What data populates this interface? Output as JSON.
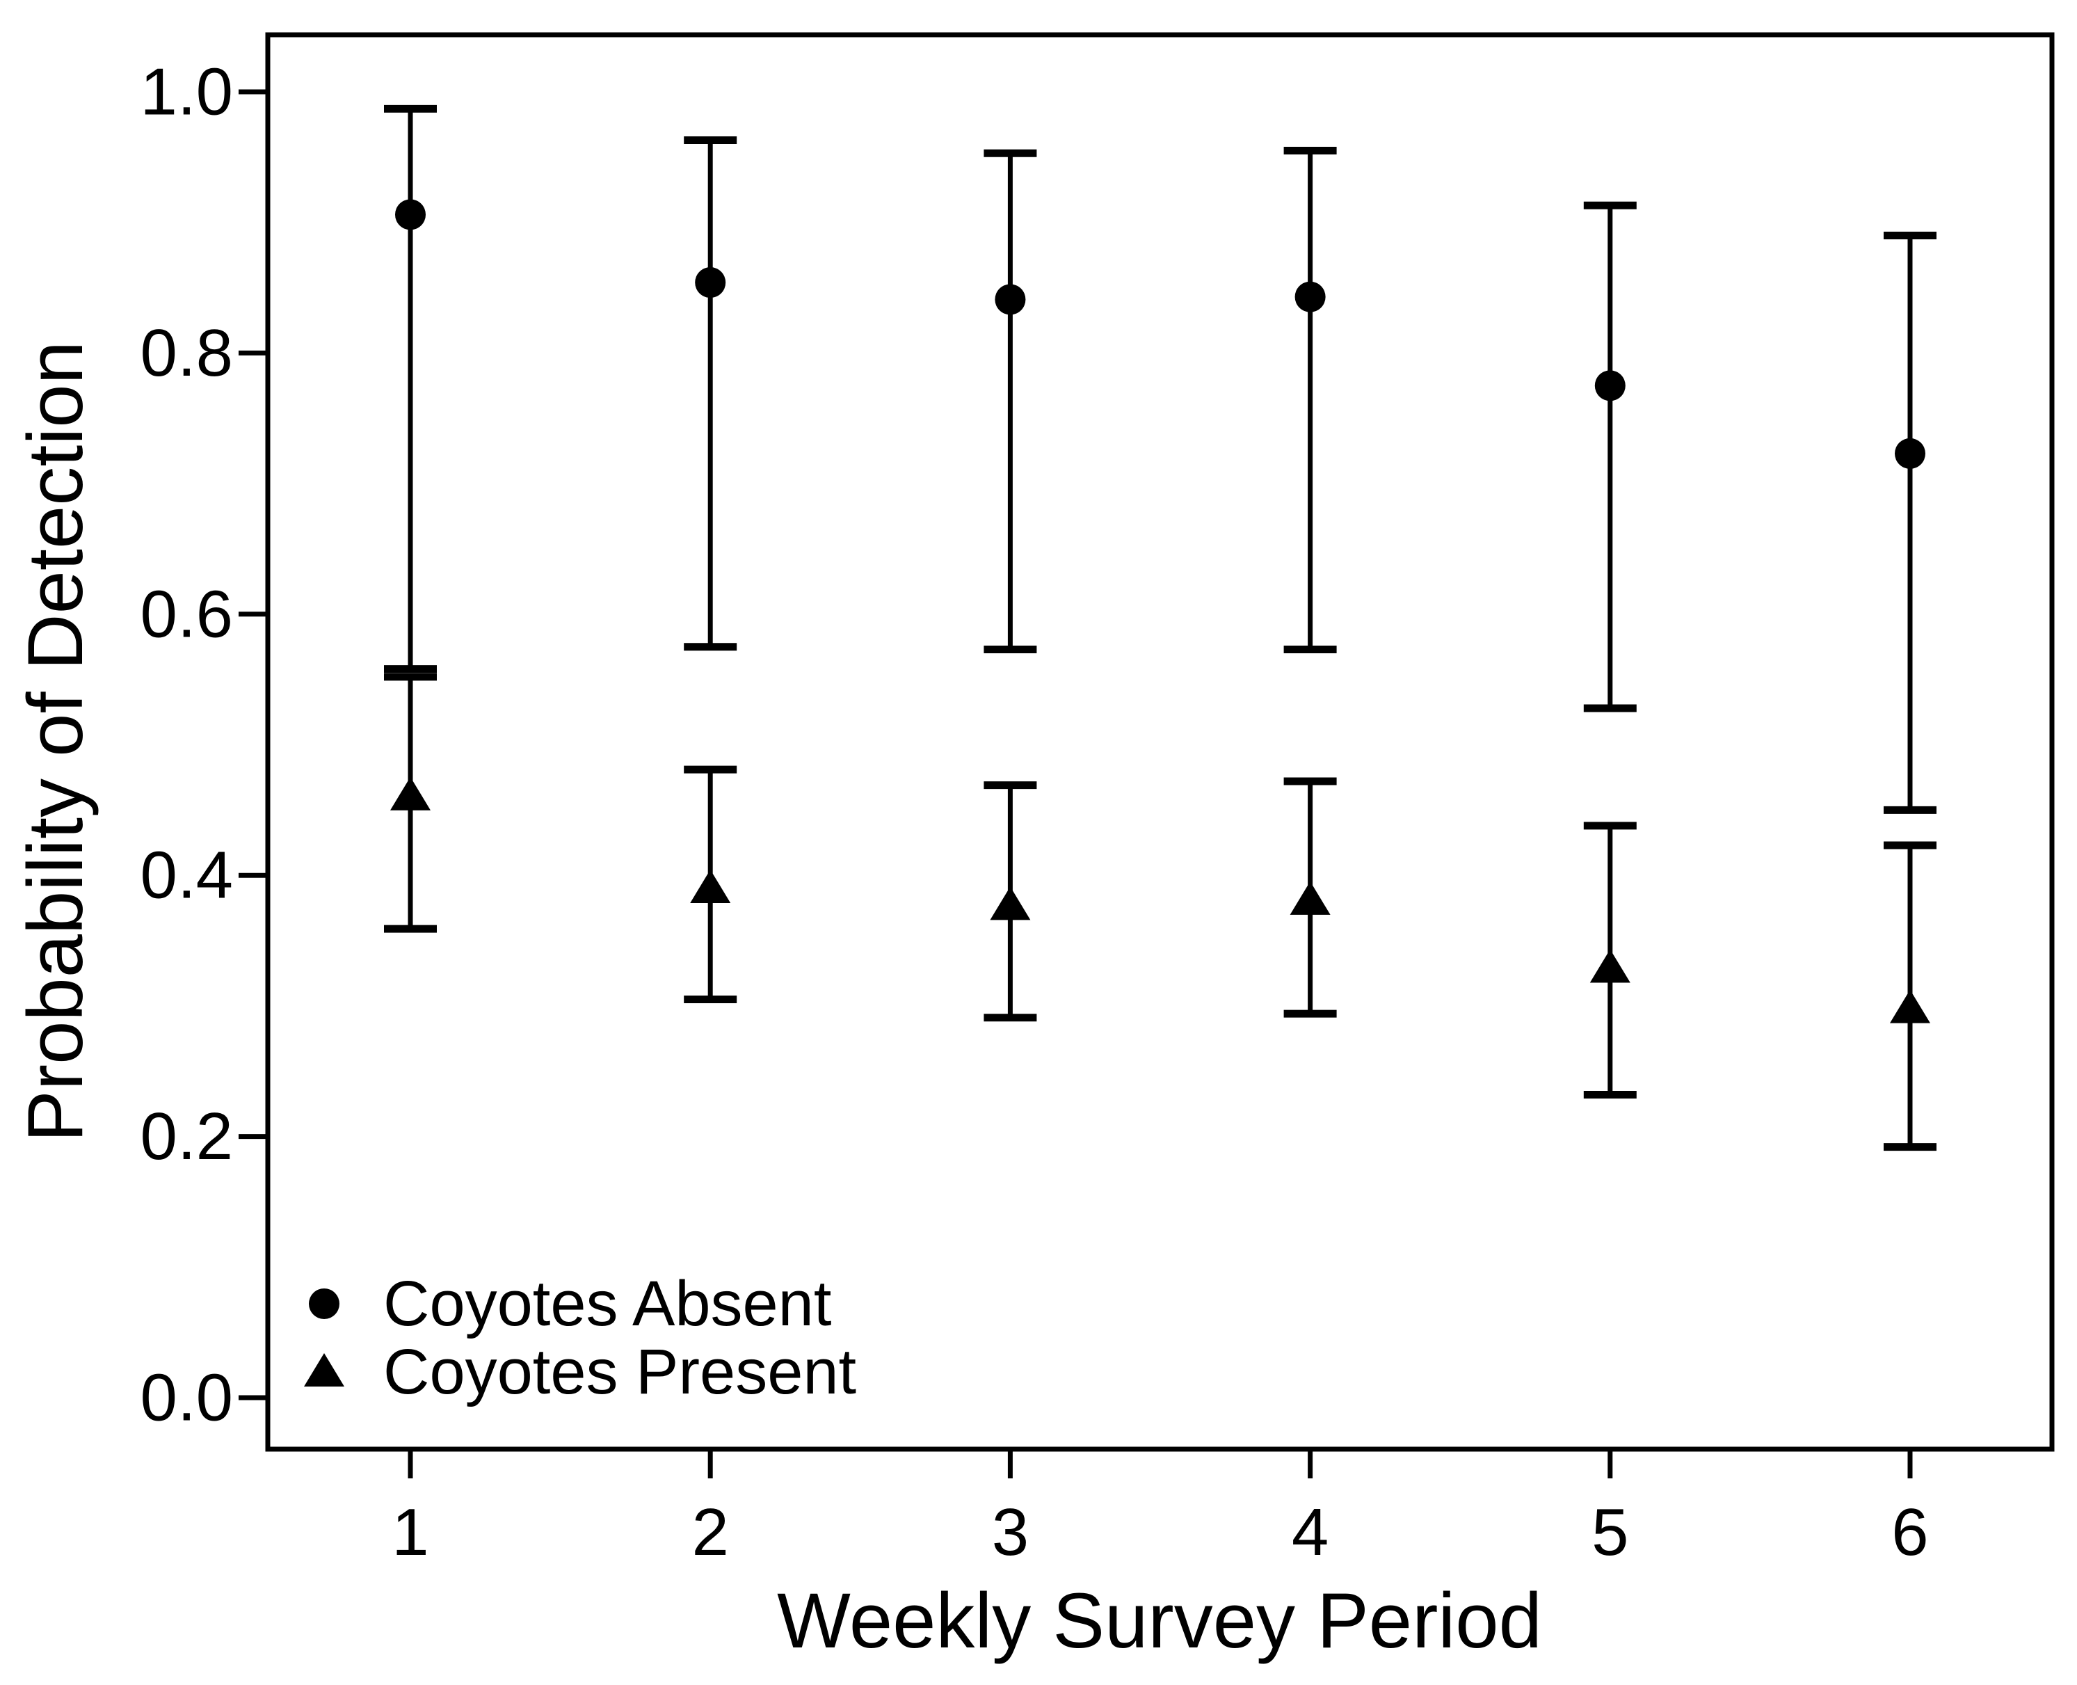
{
  "figure": {
    "background": "#ffffff",
    "foreground": "#000000"
  },
  "chart_data": {
    "type": "scatter",
    "title": "",
    "xlabel": "Weekly Survey Period",
    "ylabel": "Probability of Detection",
    "x": [
      1,
      2,
      3,
      4,
      5,
      6
    ],
    "xtick_labels": [
      "1",
      "2",
      "3",
      "4",
      "5",
      "6"
    ],
    "ytick_values": [
      0.0,
      0.2,
      0.4,
      0.6,
      0.8,
      1.0
    ],
    "ytick_labels": [
      "0.0",
      "0.2",
      "0.4",
      "0.6",
      "0.8",
      "1.0"
    ],
    "xlim": [
      0.52,
      6.47
    ],
    "ylim": [
      -0.04,
      1.04
    ],
    "grid": false,
    "error_bars": true,
    "legend_position": "bottom-left",
    "series": [
      {
        "name": "Coyotes Absent",
        "marker": "circle",
        "color": "#000000",
        "values": [
          0.906,
          0.854,
          0.841,
          0.843,
          0.775,
          0.723
        ],
        "ci_lower": [
          0.558,
          0.575,
          0.573,
          0.573,
          0.528,
          0.45
        ],
        "ci_upper": [
          0.987,
          0.963,
          0.953,
          0.955,
          0.913,
          0.89
        ]
      },
      {
        "name": "Coyotes Present",
        "marker": "triangle",
        "color": "#000000",
        "values": [
          0.461,
          0.39,
          0.377,
          0.381,
          0.329,
          0.298
        ],
        "ci_lower": [
          0.359,
          0.305,
          0.291,
          0.294,
          0.232,
          0.192
        ],
        "ci_upper": [
          0.552,
          0.481,
          0.469,
          0.472,
          0.438,
          0.423
        ]
      }
    ]
  }
}
